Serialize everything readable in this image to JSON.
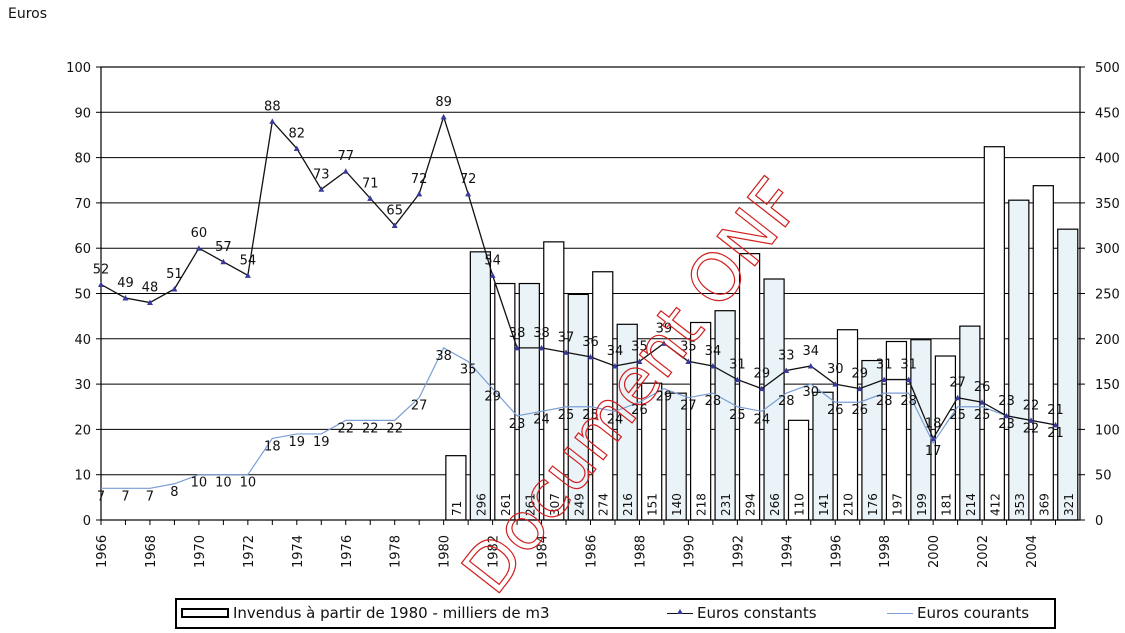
{
  "chart_data": {
    "type": "bar+line",
    "ylabel_left": "Euros",
    "ylim_left": [
      0,
      100
    ],
    "ylim_right": [
      0,
      500
    ],
    "yticks_left": [
      "0",
      "10",
      "20",
      "30",
      "40",
      "50",
      "60",
      "70",
      "80",
      "90",
      "100"
    ],
    "yticks_right": [
      "0",
      "50",
      "100",
      "150",
      "200",
      "250",
      "300",
      "350",
      "400",
      "450",
      "500"
    ],
    "xtick_labels": [
      "1966",
      "1968",
      "1970",
      "1972",
      "1974",
      "1976",
      "1978",
      "1980",
      "1982",
      "1984",
      "1986",
      "1988",
      "1990",
      "1992",
      "1994",
      "1996",
      "1998",
      "2000",
      "2002",
      "2004"
    ],
    "years": [
      1966,
      1967,
      1968,
      1969,
      1970,
      1971,
      1972,
      1973,
      1974,
      1975,
      1976,
      1977,
      1978,
      1979,
      1980,
      1981,
      1982,
      1983,
      1984,
      1985,
      1986,
      1987,
      1988,
      1989,
      1990,
      1991,
      1992,
      1993,
      1994,
      1995,
      1996,
      1997,
      1998,
      1999,
      2000,
      2001,
      2002,
      2003,
      2004,
      2005
    ],
    "series": [
      {
        "name": "Invendus à partir de 1980 - milliers de m3",
        "axis": "right",
        "kind": "bar",
        "color": "#eaf3f8",
        "alt_color": "#ffffff",
        "years": [
          1980,
          1981,
          1982,
          1983,
          1984,
          1985,
          1986,
          1987,
          1988,
          1989,
          1990,
          1991,
          1992,
          1993,
          1994,
          1995,
          1996,
          1997,
          1998,
          1999,
          2000,
          2001,
          2002,
          2003,
          2004,
          2005
        ],
        "values": [
          71,
          296,
          261,
          261,
          307,
          249,
          274,
          216,
          151,
          140,
          218,
          231,
          294,
          266,
          110,
          141,
          210,
          176,
          197,
          199,
          181,
          214,
          412,
          353,
          369,
          321
        ],
        "labels": [
          "71",
          "296",
          "261",
          "261",
          "307",
          "249",
          "274",
          "216",
          "151",
          "140",
          "218",
          "231",
          "294",
          "266",
          "110",
          "141",
          "210",
          "176",
          "197",
          "199",
          "181",
          "214",
          "412",
          "353",
          "369",
          "321"
        ]
      },
      {
        "name": "Euros constants",
        "axis": "left",
        "kind": "line",
        "color": "#111111",
        "marker_color": "#3a3a9a",
        "values": [
          52,
          49,
          48,
          51,
          60,
          57,
          54,
          88,
          82,
          73,
          77,
          71,
          65,
          72,
          89,
          72,
          54,
          38,
          38,
          37,
          36,
          34,
          35,
          39,
          35,
          34,
          31,
          29,
          33,
          34,
          30,
          29,
          31,
          31,
          18,
          27,
          26,
          23,
          22,
          21
        ],
        "labels": [
          "52",
          "49",
          "48",
          "51",
          "60",
          "57",
          "54",
          "88",
          "82",
          "73",
          "77",
          "71",
          "65",
          "72",
          "89",
          "72",
          "54",
          "38",
          "38",
          "37",
          "36",
          "34",
          "35",
          "39",
          "35",
          "34",
          "31",
          "29",
          "33",
          "34",
          "30",
          "29",
          "31",
          "31",
          "18",
          "27",
          "26",
          "23",
          "22",
          "21"
        ]
      },
      {
        "name": "Euros courants",
        "axis": "left",
        "kind": "line",
        "color": "#7b9ed4",
        "values": [
          7,
          7,
          7,
          8,
          10,
          10,
          10,
          18,
          19,
          19,
          22,
          22,
          22,
          27,
          38,
          35,
          29,
          23,
          24,
          25,
          25,
          24,
          26,
          29,
          27,
          28,
          25,
          24,
          28,
          30,
          26,
          26,
          28,
          28,
          17,
          25,
          25,
          23,
          22,
          21
        ],
        "labels": [
          "7",
          "7",
          "7",
          "8",
          "10",
          "10",
          "10",
          "18",
          "19",
          "19",
          "22",
          "22",
          "22",
          "27",
          "38",
          "35",
          "29",
          "23",
          "24",
          "25",
          "25",
          "24",
          "26",
          "29",
          "27",
          "28",
          "25",
          "24",
          "28",
          "30",
          "26",
          "26",
          "28",
          "28",
          "17",
          "25",
          "25",
          "23",
          "22",
          "21"
        ]
      }
    ],
    "grid": true,
    "legend_position": "bottom"
  },
  "watermark_text": "Document ONF"
}
